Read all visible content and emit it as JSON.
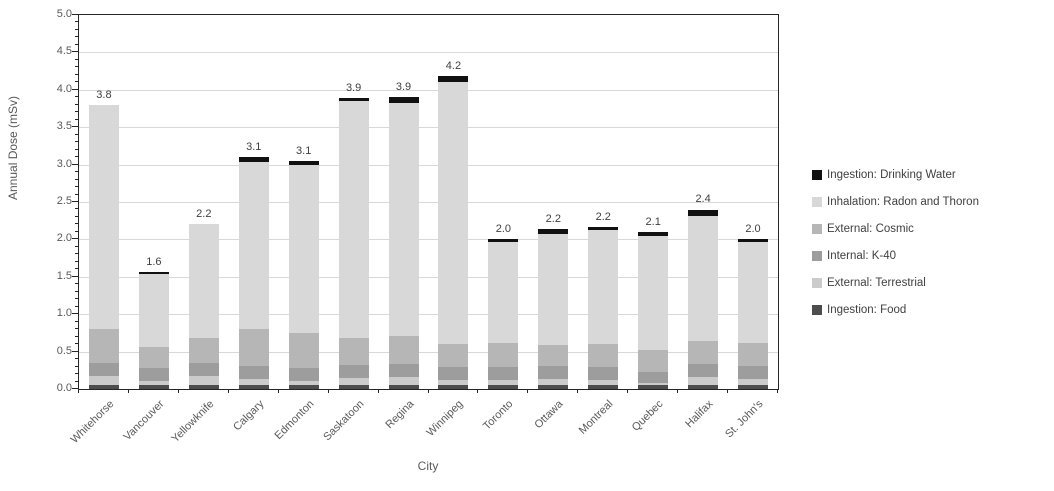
{
  "chart_data": {
    "type": "bar",
    "subtype": "stacked-vertical",
    "title": "",
    "xlabel": "City",
    "ylabel": "Annual Dose (mSv)",
    "ylim": [
      0,
      5.0
    ],
    "ytick_step": 0.5,
    "ytick_minor_step": 0.1,
    "grid": true,
    "legend_position": "right",
    "categories": [
      "Whitehorse",
      "Vancouver",
      "Yellowknife",
      "Calgary",
      "Edmonton",
      "Saskatoon",
      "Regina",
      "Winnipeg",
      "Toronto",
      "Ottawa",
      "Montreal",
      "Quebec",
      "Halifax",
      "St. John's"
    ],
    "totals_labels": [
      "3.8",
      "1.6",
      "2.2",
      "3.1",
      "3.1",
      "3.9",
      "3.9",
      "4.2",
      "2.0",
      "2.2",
      "2.2",
      "2.1",
      "2.4",
      "2.0"
    ],
    "series": [
      {
        "name": "Ingestion: Food",
        "color": "#4d4d4d",
        "values": [
          0.05,
          0.05,
          0.05,
          0.05,
          0.05,
          0.05,
          0.05,
          0.05,
          0.05,
          0.05,
          0.05,
          0.05,
          0.05,
          0.05
        ]
      },
      {
        "name": "External: Terrestrial",
        "color": "#cbcbcb",
        "values": [
          0.13,
          0.06,
          0.13,
          0.09,
          0.06,
          0.1,
          0.11,
          0.07,
          0.07,
          0.09,
          0.07,
          0.03,
          0.11,
          0.09
        ]
      },
      {
        "name": "Internal: K-40",
        "color": "#9d9d9d",
        "values": [
          0.17,
          0.17,
          0.17,
          0.17,
          0.17,
          0.17,
          0.17,
          0.17,
          0.17,
          0.17,
          0.17,
          0.15,
          0.17,
          0.17
        ]
      },
      {
        "name": "External: Cosmic",
        "color": "#b6b6b6",
        "values": [
          0.45,
          0.28,
          0.33,
          0.49,
          0.47,
          0.36,
          0.38,
          0.31,
          0.32,
          0.28,
          0.31,
          0.29,
          0.31,
          0.31
        ]
      },
      {
        "name": "Inhalation: Radon and Thoron",
        "color": "#d8d8d8",
        "values": [
          3.0,
          0.98,
          1.52,
          2.24,
          2.25,
          3.17,
          3.12,
          3.51,
          1.35,
          1.48,
          1.52,
          1.52,
          1.67,
          1.35
        ]
      },
      {
        "name": "Ingestion: Drinking Water",
        "color": "#111111",
        "values": [
          0.0,
          0.03,
          0.0,
          0.06,
          0.05,
          0.04,
          0.07,
          0.08,
          0.04,
          0.07,
          0.05,
          0.06,
          0.09,
          0.04
        ]
      }
    ],
    "legend_order": [
      "Ingestion: Drinking Water",
      "Inhalation: Radon and Thoron",
      "External: Cosmic",
      "Internal: K-40",
      "External: Terrestrial",
      "Ingestion: Food"
    ],
    "colors": {
      "axis": "#262626",
      "gridline": "#d9d9d9",
      "tick_label": "#595959",
      "data_label": "#404040",
      "background": "#ffffff"
    }
  }
}
